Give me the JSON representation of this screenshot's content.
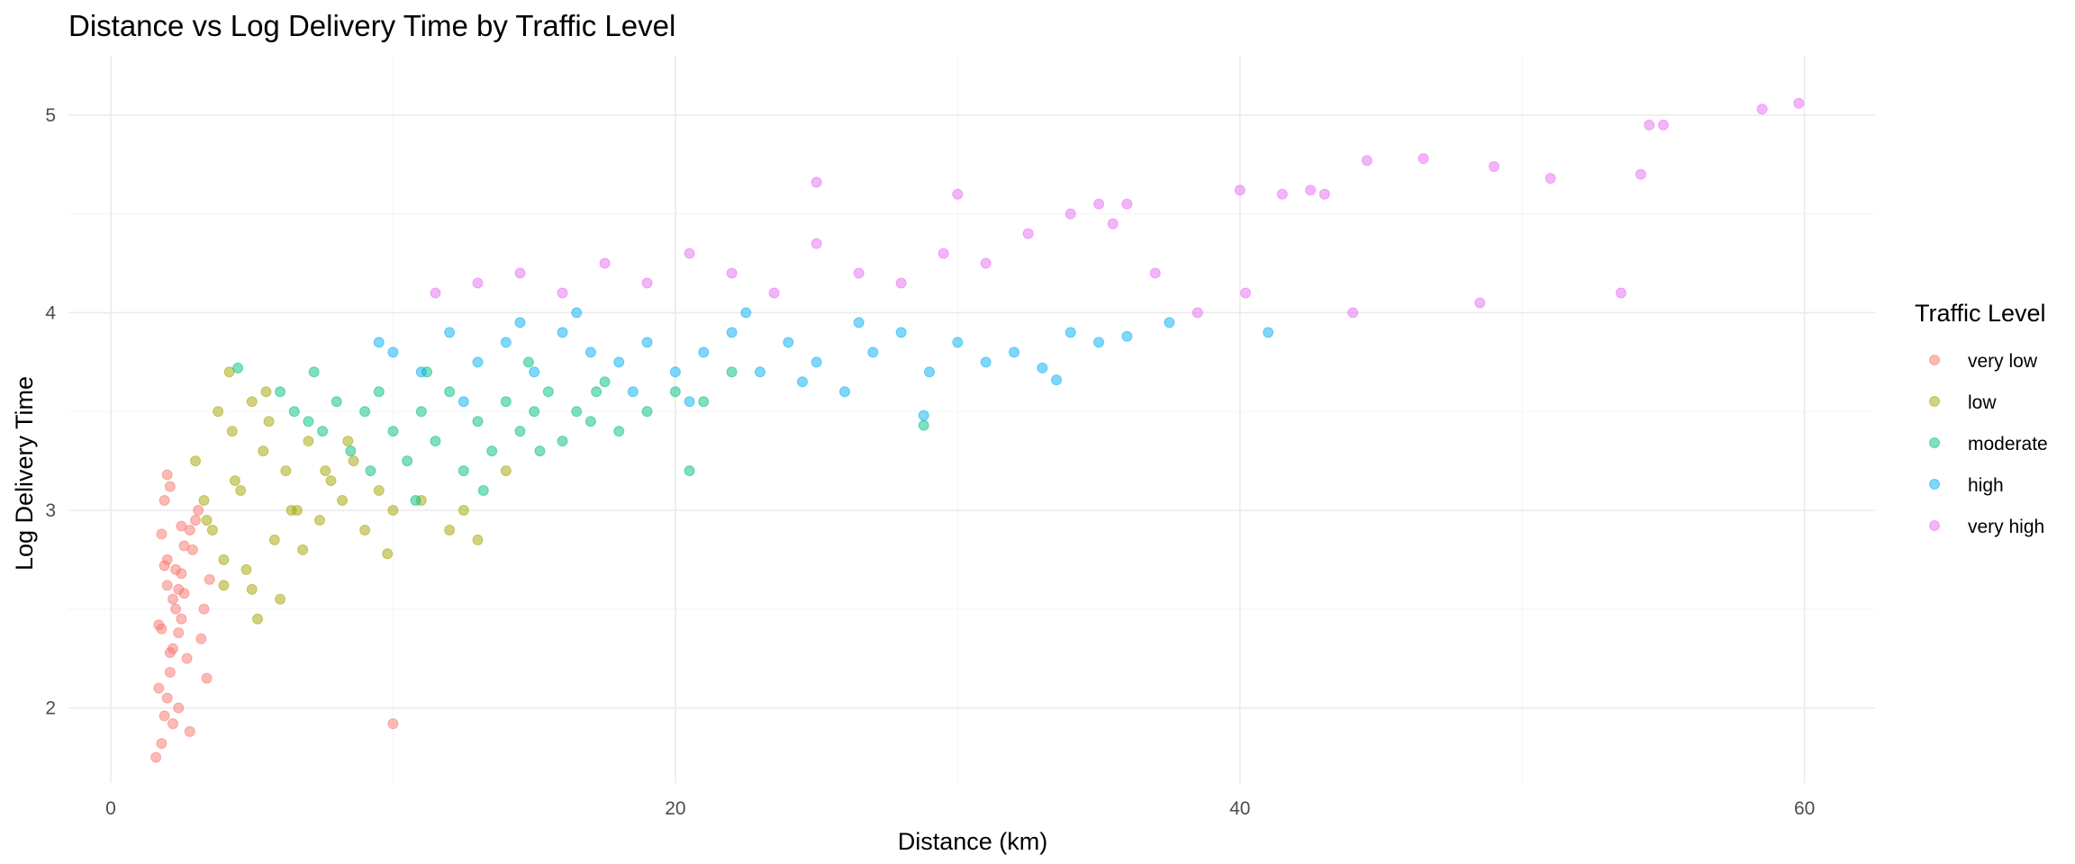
{
  "chart_data": {
    "type": "scatter",
    "title": "Distance vs Log Delivery Time by Traffic Level",
    "xlabel": "Distance (km)",
    "ylabel": "Log Delivery Time",
    "xlim": [
      -1.5,
      62.5
    ],
    "ylim": [
      1.62,
      5.3
    ],
    "x_ticks": [
      0,
      20,
      40,
      60
    ],
    "y_ticks": [
      2,
      3,
      4,
      5
    ],
    "grid": true,
    "point_alpha": 0.5,
    "legend": {
      "title": "Traffic Level",
      "position": "right"
    },
    "series": [
      {
        "name": "very low",
        "color": "#F8766D",
        "x": [
          1.6,
          1.8,
          1.9,
          2.0,
          2.1,
          2.2,
          1.7,
          2.3,
          2.4,
          2.5,
          2.0,
          2.6,
          2.8,
          3.0,
          1.9,
          2.1,
          2.2,
          2.4,
          2.7,
          1.8,
          2.0,
          2.3,
          2.5,
          2.9,
          3.1,
          1.7,
          2.2,
          2.6,
          3.4,
          3.2,
          2.0,
          2.4,
          2.8,
          1.9,
          3.3,
          10.0,
          2.1,
          2.5,
          3.5,
          1.8
        ],
        "y": [
          1.75,
          1.82,
          1.96,
          2.05,
          2.18,
          2.3,
          2.42,
          2.5,
          2.6,
          2.68,
          2.75,
          2.82,
          2.9,
          2.95,
          3.05,
          3.12,
          2.55,
          2.38,
          2.25,
          2.88,
          2.62,
          2.7,
          2.45,
          2.8,
          3.0,
          2.1,
          1.92,
          2.58,
          2.15,
          2.35,
          3.18,
          2.0,
          1.88,
          2.72,
          2.5,
          1.92,
          2.28,
          2.92,
          2.65,
          2.4
        ]
      },
      {
        "name": "low",
        "color": "#A3A500",
        "x": [
          3.0,
          3.3,
          3.6,
          4.0,
          4.3,
          4.6,
          5.0,
          5.4,
          5.8,
          6.2,
          6.6,
          7.0,
          7.4,
          7.8,
          8.2,
          8.6,
          9.0,
          9.5,
          10.0,
          11.0,
          12.0,
          13.0,
          14.0,
          4.2,
          5.2,
          6.0,
          3.8,
          4.8,
          5.6,
          6.8,
          7.6,
          8.4,
          3.4,
          4.4,
          5.0,
          6.4,
          9.8,
          12.5,
          4.0,
          5.5
        ],
        "y": [
          3.25,
          3.05,
          2.9,
          2.75,
          3.4,
          3.1,
          2.6,
          3.3,
          2.85,
          3.2,
          3.0,
          3.35,
          2.95,
          3.15,
          3.05,
          3.25,
          2.9,
          3.1,
          3.0,
          3.05,
          2.9,
          2.85,
          3.2,
          3.7,
          2.45,
          2.55,
          3.5,
          2.7,
          3.45,
          2.8,
          3.2,
          3.35,
          2.95,
          3.15,
          3.55,
          3.0,
          2.78,
          3.0,
          2.62,
          3.6
        ]
      },
      {
        "name": "moderate",
        "color": "#00BF7D",
        "x": [
          6.0,
          6.5,
          7.0,
          7.5,
          8.0,
          8.5,
          9.0,
          9.5,
          10.0,
          10.5,
          11.0,
          11.5,
          12.0,
          12.5,
          13.0,
          13.5,
          14.0,
          14.5,
          15.0,
          15.5,
          16.0,
          16.5,
          17.0,
          17.5,
          18.0,
          19.0,
          20.0,
          20.5,
          21.0,
          22.0,
          28.8,
          7.2,
          9.2,
          11.2,
          13.2,
          15.2,
          17.2,
          4.5,
          10.8,
          14.8
        ],
        "y": [
          3.6,
          3.5,
          3.45,
          3.4,
          3.55,
          3.3,
          3.5,
          3.6,
          3.4,
          3.25,
          3.5,
          3.35,
          3.6,
          3.2,
          3.45,
          3.3,
          3.55,
          3.4,
          3.5,
          3.6,
          3.35,
          3.5,
          3.45,
          3.65,
          3.4,
          3.5,
          3.6,
          3.2,
          3.55,
          3.7,
          3.43,
          3.7,
          3.2,
          3.7,
          3.1,
          3.3,
          3.6,
          3.72,
          3.05,
          3.75
        ]
      },
      {
        "name": "high",
        "color": "#00B0F6",
        "x": [
          10.0,
          11.0,
          12.0,
          13.0,
          14.0,
          15.0,
          16.0,
          17.0,
          18.0,
          19.0,
          20.0,
          21.0,
          22.0,
          23.0,
          24.0,
          25.0,
          26.0,
          27.0,
          28.0,
          29.0,
          30.0,
          31.0,
          32.0,
          33.0,
          34.0,
          35.0,
          36.0,
          37.5,
          41.0,
          28.8,
          14.5,
          16.5,
          18.5,
          20.5,
          22.5,
          24.5,
          26.5,
          12.5,
          9.5,
          33.5
        ],
        "y": [
          3.8,
          3.7,
          3.9,
          3.75,
          3.85,
          3.7,
          3.9,
          3.8,
          3.75,
          3.85,
          3.7,
          3.8,
          3.9,
          3.7,
          3.85,
          3.75,
          3.6,
          3.8,
          3.9,
          3.7,
          3.85,
          3.75,
          3.8,
          3.72,
          3.9,
          3.85,
          3.88,
          3.95,
          3.9,
          3.48,
          3.95,
          4.0,
          3.6,
          3.55,
          4.0,
          3.65,
          3.95,
          3.55,
          3.85,
          3.66
        ]
      },
      {
        "name": "very high",
        "color": "#E76BF3",
        "x": [
          11.5,
          13.0,
          14.5,
          16.0,
          17.5,
          19.0,
          20.5,
          22.0,
          23.5,
          25.0,
          26.5,
          28.0,
          29.5,
          31.0,
          32.5,
          34.0,
          35.5,
          37.0,
          38.5,
          40.0,
          41.5,
          43.0,
          44.5,
          46.5,
          49.0,
          51.0,
          53.5,
          54.5,
          58.5,
          59.8,
          25.0,
          30.0,
          35.0,
          42.5,
          48.5,
          54.2,
          40.2,
          44.0,
          36.0,
          55.0
        ],
        "y": [
          4.1,
          4.15,
          4.2,
          4.1,
          4.25,
          4.15,
          4.3,
          4.2,
          4.1,
          4.35,
          4.2,
          4.15,
          4.3,
          4.25,
          4.4,
          4.5,
          4.45,
          4.2,
          4.0,
          4.62,
          4.6,
          4.6,
          4.77,
          4.78,
          4.74,
          4.68,
          4.1,
          4.95,
          5.03,
          5.06,
          4.66,
          4.6,
          4.55,
          4.62,
          4.05,
          4.7,
          4.1,
          4.0,
          4.55,
          4.95
        ]
      }
    ]
  }
}
